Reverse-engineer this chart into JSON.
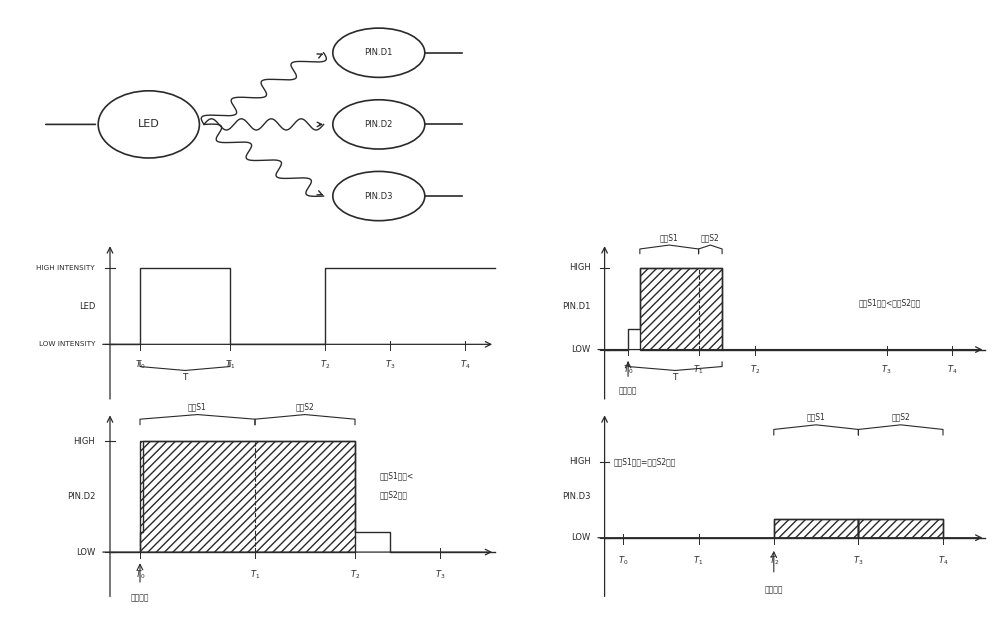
{
  "bg_color": "#ffffff",
  "line_color": "#2a2a2a",
  "fig_width": 10.0,
  "fig_height": 6.22,
  "dpi": 100,
  "led_label": "LED",
  "pin_labels": [
    "PIN.D1",
    "PIN.D2",
    "PIN.D3"
  ],
  "annotation_s1_less_1line": "取样S1能量<取样S2能量",
  "annotation_s1_less_2line_a": "取样S1能量<",
  "annotation_s1_less_2line_b": "取样S2能量",
  "annotation_s1_eq": "取样S1能量=取样S2能量",
  "sample_s1": "取样S1",
  "sample_s2": "取样S2",
  "start_sample": "开始取样",
  "T_label": "T",
  "high_intensity": "HIGH INTENSITY",
  "low_intensity": "LOW INTENSITY",
  "led_mid": "LED",
  "high_lbl": "HIGH",
  "low_lbl": "LOW"
}
